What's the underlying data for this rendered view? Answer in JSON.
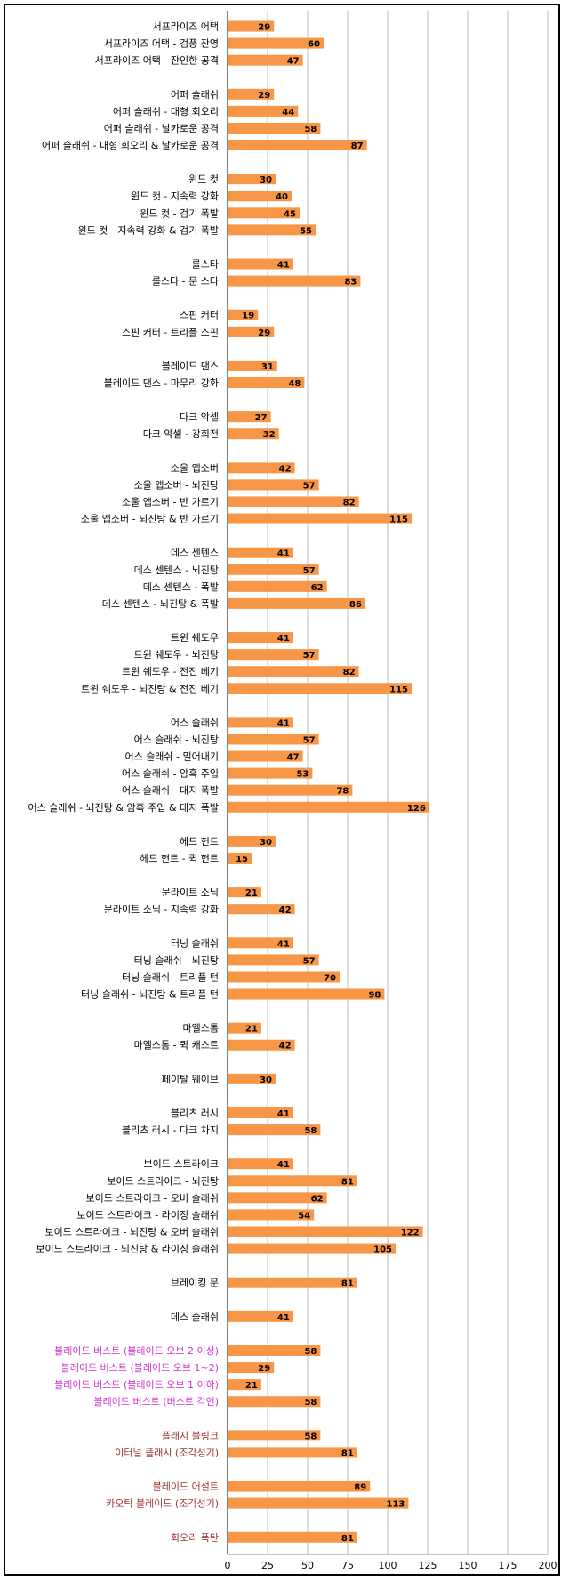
{
  "chart_data": {
    "type": "bar",
    "orientation": "horizontal",
    "grid": true,
    "xlim": [
      0,
      200
    ],
    "xticks": [
      "0",
      "25",
      "50",
      "75",
      "100",
      "125",
      "150",
      "175",
      "200"
    ],
    "bar_color": "#F79646",
    "label_colors": {
      "default": "#000000",
      "pink": "#CC33CC",
      "red": "#993333"
    },
    "groups": [
      {
        "items": [
          {
            "label": "서프라이즈 어택",
            "value": 29
          },
          {
            "label": "서프라이즈 어택 - 검풍 잔영",
            "value": 60
          },
          {
            "label": "서프라이즈 어택 - 잔인한 공격",
            "value": 47
          }
        ]
      },
      {
        "items": [
          {
            "label": "어퍼 슬래쉬",
            "value": 29
          },
          {
            "label": "어퍼 슬래쉬 - 대형 회오리",
            "value": 44
          },
          {
            "label": "어퍼 슬래쉬 - 날카로운 공격",
            "value": 58
          },
          {
            "label": "어퍼 슬래쉬 - 대형 회오리 & 날카로운 공격",
            "value": 87
          }
        ]
      },
      {
        "items": [
          {
            "label": "윈드 컷",
            "value": 30
          },
          {
            "label": "윈드 컷 - 지속력 강화",
            "value": 40
          },
          {
            "label": "윈드 컷 - 검기 폭발",
            "value": 45
          },
          {
            "label": "윈드 컷 - 지속력 강화 & 검기 폭발",
            "value": 55
          }
        ]
      },
      {
        "items": [
          {
            "label": "롤스타",
            "value": 41
          },
          {
            "label": "롤스타 - 문 스타",
            "value": 83
          }
        ]
      },
      {
        "items": [
          {
            "label": "스핀 커터",
            "value": 19
          },
          {
            "label": "스핀 커터 - 트리플 스핀",
            "value": 29
          }
        ]
      },
      {
        "items": [
          {
            "label": "블레이드 댄스",
            "value": 31
          },
          {
            "label": "블레이드 댄스 - 마무리 강화",
            "value": 48
          }
        ]
      },
      {
        "items": [
          {
            "label": "다크 악셀",
            "value": 27
          },
          {
            "label": "다크 악셀 - 강회전",
            "value": 32
          }
        ]
      },
      {
        "items": [
          {
            "label": "소울 앱소버",
            "value": 42
          },
          {
            "label": "소울 앱소버 - 뇌진탕",
            "value": 57
          },
          {
            "label": "소울 앱소버 - 반 가르기",
            "value": 82
          },
          {
            "label": "소울 앱소버 - 뇌진탕 & 반 가르기",
            "value": 115
          }
        ]
      },
      {
        "items": [
          {
            "label": "데스 센텐스",
            "value": 41
          },
          {
            "label": "데스 센텐스 - 뇌진탕",
            "value": 57
          },
          {
            "label": "데스 센텐스 - 폭발",
            "value": 62
          },
          {
            "label": "데스 센텐스 - 뇌진탕 & 폭발",
            "value": 86
          }
        ]
      },
      {
        "items": [
          {
            "label": "트윈 쉐도우",
            "value": 41
          },
          {
            "label": "트윈 쉐도우 - 뇌진탕",
            "value": 57
          },
          {
            "label": "트윈 쉐도우 - 전진 베기",
            "value": 82
          },
          {
            "label": "트윈 쉐도우 - 뇌진탕 & 전진 베기",
            "value": 115
          }
        ]
      },
      {
        "items": [
          {
            "label": "어스 슬래쉬",
            "value": 41
          },
          {
            "label": "어스 슬래쉬 - 뇌진탕",
            "value": 57
          },
          {
            "label": "어스 슬래쉬 - 밀어내기",
            "value": 47
          },
          {
            "label": "어스 슬래쉬 - 암흑 주입",
            "value": 53
          },
          {
            "label": "어스 슬래쉬 - 대지 폭발",
            "value": 78
          },
          {
            "label": "어스 슬래쉬 - 뇌진탕 & 암흑 주입 & 대지 폭발",
            "value": 126
          }
        ]
      },
      {
        "items": [
          {
            "label": "헤드 헌트",
            "value": 30
          },
          {
            "label": "헤드 헌트 - 퀵 헌트",
            "value": 15
          }
        ]
      },
      {
        "items": [
          {
            "label": "문라이트 소닉",
            "value": 21
          },
          {
            "label": "문라이트 소닉 - 지속력 강화",
            "value": 42
          }
        ]
      },
      {
        "items": [
          {
            "label": "터닝 슬래쉬",
            "value": 41
          },
          {
            "label": "터닝 슬래쉬 - 뇌진탕",
            "value": 57
          },
          {
            "label": "터닝 슬래쉬 - 트리플 턴",
            "value": 70
          },
          {
            "label": "터닝 슬래쉬 - 뇌진탕 & 트리플 턴",
            "value": 98
          }
        ]
      },
      {
        "items": [
          {
            "label": "마엘스톰",
            "value": 21
          },
          {
            "label": "마엘스톰 - 퀵 캐스트",
            "value": 42
          }
        ]
      },
      {
        "items": [
          {
            "label": "페이탈 웨이브",
            "value": 30
          }
        ]
      },
      {
        "items": [
          {
            "label": "블리츠 러시",
            "value": 41
          },
          {
            "label": "블리츠 러시 - 다크 차지",
            "value": 58
          }
        ]
      },
      {
        "items": [
          {
            "label": "보이드 스트라이크",
            "value": 41
          },
          {
            "label": "보이드 스트라이크 - 뇌진탕",
            "value": 81
          },
          {
            "label": "보이드 스트라이크 - 오버 슬래쉬",
            "value": 62
          },
          {
            "label": "보이드 스트라이크 - 라이징 슬래쉬",
            "value": 54
          },
          {
            "label": "보이드 스트라이크 - 뇌진탕 & 오버 슬래쉬",
            "value": 122
          },
          {
            "label": "보이드 스트라이크 - 뇌진탕 & 라이징 슬래쉬",
            "value": 105
          }
        ]
      },
      {
        "items": [
          {
            "label": "브레이킹 문",
            "value": 81
          }
        ]
      },
      {
        "items": [
          {
            "label": "데스 슬래쉬",
            "value": 41
          }
        ]
      },
      {
        "items": [
          {
            "label": "블레이드 버스트 (블레이드 오브 2 이상)",
            "value": 58,
            "color": "pink"
          },
          {
            "label": "블레이드 버스트 (블레이드 오브 1~2)",
            "value": 29,
            "color": "pink"
          },
          {
            "label": "블레이드 버스트 (블레이드 오브 1 이하)",
            "value": 21,
            "color": "pink"
          },
          {
            "label": "블레이드 버스트 (버스트 각인)",
            "value": 58,
            "color": "pink"
          }
        ]
      },
      {
        "items": [
          {
            "label": "플래시 블링크",
            "value": 58,
            "color": "red"
          },
          {
            "label": "이터널 플래시 (조각성기)",
            "value": 81,
            "color": "red"
          }
        ]
      },
      {
        "items": [
          {
            "label": "블레이드 어설트",
            "value": 89,
            "color": "red"
          },
          {
            "label": "카오틱 블레이드 (조각성기)",
            "value": 113,
            "color": "red"
          }
        ]
      },
      {
        "items": [
          {
            "label": "회오리 폭탄",
            "value": 81,
            "color": "red"
          }
        ]
      }
    ]
  }
}
